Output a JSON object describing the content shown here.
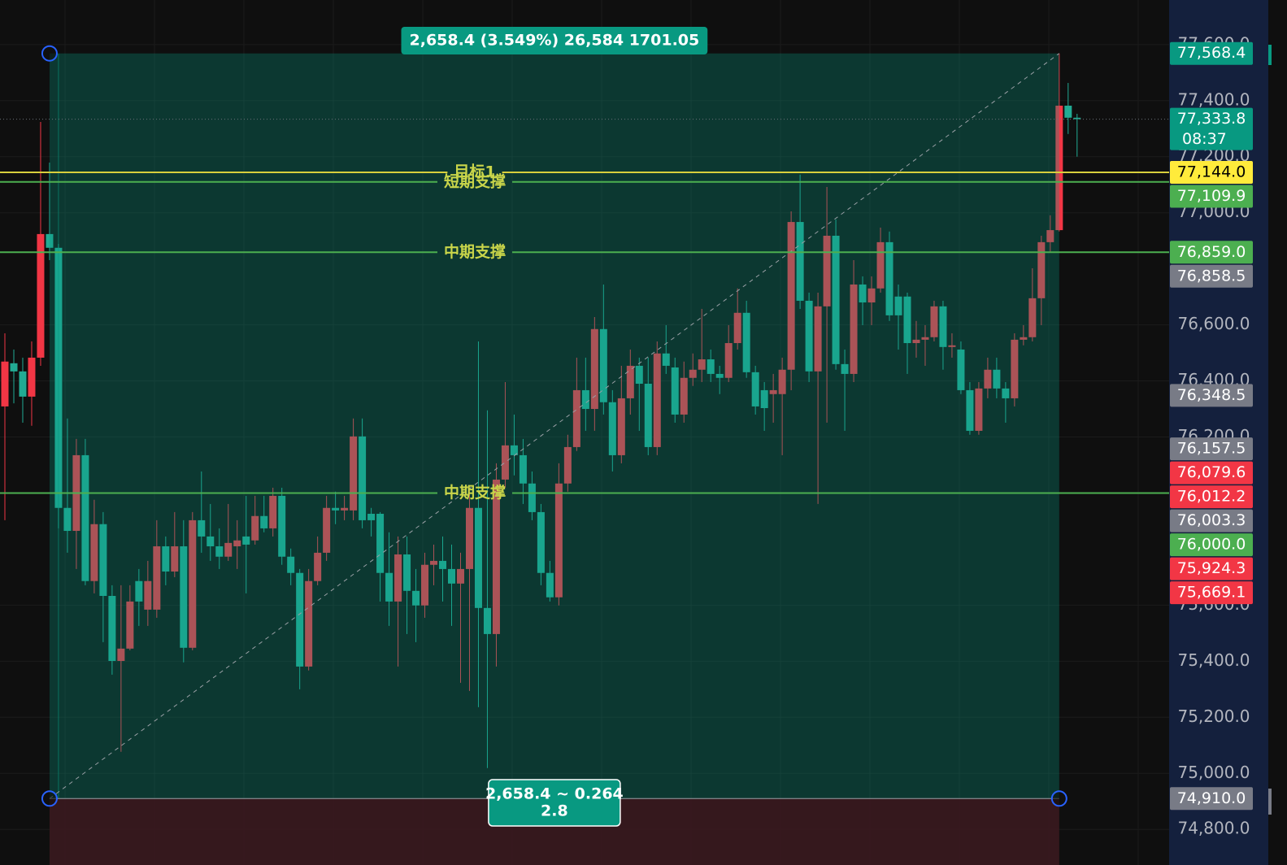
{
  "chart_data": {
    "type": "candlestick",
    "up_color": "#f23645",
    "down_color": "#22ab94",
    "open": [
      76309,
      76463,
      76434,
      76344,
      76483,
      76924,
      76875,
      75947,
      75865,
      76135,
      75686,
      75889,
      75633,
      75401,
      75445,
      75686,
      75584,
      75584,
      75810,
      75720,
      75810,
      75448,
      75903,
      75845,
      75810,
      75773,
      75810,
      75845,
      75831,
      75918,
      75874,
      75990,
      75773,
      75715,
      75381,
      75686,
      75787,
      75947,
      75938,
      75938,
      76202,
      75926,
      75926,
      75715,
      75613,
      75781,
      75651,
      75599,
      75744,
      75758,
      75729,
      75677,
      75729,
      75947,
      75590,
      75497,
      76048,
      76170,
      76135,
      76034,
      75932,
      75715,
      75628,
      76034,
      76164,
      76367,
      76300,
      76585,
      76324,
      76135,
      76338,
      76454,
      76390,
      76164,
      76498,
      76448,
      76280,
      76411,
      76440,
      76477,
      76425,
      76411,
      76535,
      76643,
      76431,
      76367,
      76353,
      76353,
      76440,
      76967,
      76686,
      76434,
      76666,
      76918,
      76460,
      76425,
      76744,
      76680,
      76730,
      76895,
      76701,
      76701,
      76535,
      76547,
      76556,
      76666,
      76521,
      76512,
      76367,
      76222,
      76373,
      76440,
      76373,
      76338,
      76547,
      76556,
      76695,
      76895,
      76938,
      77382,
      77339
    ],
    "high": [
      76570,
      76512,
      76483,
      76541,
      77324,
      77179,
      76889,
      76266,
      76193,
      76193,
      75976,
      75932,
      75671,
      75671,
      75671,
      75729,
      75758,
      75903,
      75845,
      75932,
      75903,
      75932,
      76077,
      75961,
      75874,
      75961,
      75903,
      75990,
      75990,
      75990,
      76019,
      76019,
      75802,
      75729,
      75729,
      75845,
      75990,
      76005,
      75990,
      76266,
      76266,
      75947,
      75932,
      75860,
      75845,
      75845,
      75729,
      75787,
      75816,
      75845,
      75816,
      75787,
      76019,
      76541,
      76295,
      76106,
      76396,
      76280,
      76193,
      76077,
      75961,
      75758,
      76106,
      76208,
      76483,
      76483,
      76628,
      76744,
      76367,
      76454,
      76512,
      76483,
      76483,
      76541,
      76599,
      76483,
      76469,
      76498,
      76657,
      76512,
      76454,
      76599,
      76730,
      76686,
      76454,
      76396,
      76425,
      76483,
      77005,
      77136,
      76715,
      76715,
      77092,
      76976,
      76512,
      76831,
      76773,
      76773,
      76947,
      76933,
      76744,
      76715,
      76614,
      76599,
      76686,
      76686,
      76570,
      76541,
      76396,
      76396,
      76483,
      76483,
      76396,
      76570,
      76599,
      76802,
      76918,
      76991,
      77568.4,
      77463,
      77353
    ],
    "low": [
      75903,
      76320,
      76251,
      76240,
      76454,
      76831,
      75874,
      75787,
      75729,
      75671,
      75642,
      75468,
      75352,
      75077,
      75439,
      75526,
      75526,
      75555,
      75671,
      75700,
      75396,
      75439,
      75787,
      75758,
      75729,
      75758,
      75729,
      75642,
      75816,
      75860,
      75845,
      75744,
      75671,
      75300,
      75367,
      75671,
      75758,
      75889,
      75903,
      75903,
      75874,
      75845,
      75613,
      75526,
      75381,
      75497,
      75468,
      75555,
      75671,
      75613,
      75526,
      75323,
      75294,
      75236,
      75019,
      75381,
      76019,
      76063,
      75961,
      75903,
      75671,
      75613,
      75599,
      76005,
      76150,
      76222,
      76222,
      76280,
      76077,
      76106,
      76280,
      76222,
      76135,
      76135,
      76425,
      76251,
      76251,
      76382,
      76396,
      76396,
      76353,
      76396,
      76512,
      76411,
      76280,
      76222,
      76251,
      76135,
      76367,
      76657,
      76396,
      75961,
      76251,
      76440,
      76222,
      76396,
      76599,
      76599,
      76715,
      76614,
      76512,
      76425,
      76483,
      76454,
      76541,
      76440,
      76483,
      76353,
      76208,
      76208,
      76338,
      76338,
      76251,
      76309,
      76527,
      76541,
      76599,
      76860,
      76933,
      77281,
      77200
    ],
    "close": [
      76469,
      76434,
      76344,
      76483,
      76924,
      76875,
      75947,
      75865,
      76135,
      75686,
      75889,
      75633,
      75401,
      75445,
      75613,
      75613,
      75686,
      75810,
      75720,
      75810,
      75448,
      75903,
      75845,
      75810,
      75773,
      75822,
      75831,
      75816,
      75918,
      75874,
      75990,
      75773,
      75715,
      75381,
      75686,
      75787,
      75947,
      75938,
      75947,
      76202,
      75903,
      75903,
      75715,
      75613,
      75781,
      75651,
      75599,
      75744,
      75758,
      75729,
      75677,
      75729,
      75947,
      75590,
      75497,
      76048,
      76170,
      76135,
      76034,
      75932,
      75715,
      75628,
      76034,
      76164,
      76367,
      76300,
      76585,
      76324,
      76135,
      76338,
      76454,
      76390,
      76164,
      76498,
      76454,
      76280,
      76411,
      76440,
      76477,
      76425,
      76411,
      76535,
      76643,
      76431,
      76309,
      76303,
      76367,
      76440,
      76967,
      76686,
      76434,
      76666,
      76918,
      76460,
      76425,
      76744,
      76680,
      76730,
      76895,
      76634,
      76634,
      76535,
      76547,
      76556,
      76666,
      76521,
      76527,
      76367,
      76222,
      76373,
      76440,
      76373,
      76338,
      76547,
      76556,
      76695,
      76895,
      76938,
      77382,
      77339,
      77333.8
    ],
    "ylim": [
      74673,
      77759
    ],
    "yticks": [
      {
        "value": 74800,
        "label": "74,800.0"
      },
      {
        "value": 75000,
        "label": "75,000.0"
      },
      {
        "value": 75200,
        "label": "75,200.0"
      },
      {
        "value": 75400,
        "label": "75,400.0"
      },
      {
        "value": 75600,
        "label": "75,600.0"
      },
      {
        "value": 76200,
        "label": "76,200.0"
      },
      {
        "value": 76400,
        "label": "76,400.0"
      },
      {
        "value": 76600,
        "label": "76,600.0"
      },
      {
        "value": 77000,
        "label": "77,000.0"
      },
      {
        "value": 77200,
        "label": "77,200.0"
      },
      {
        "value": 77400,
        "label": "77,400.0"
      },
      {
        "value": 77600,
        "label": "77,600.0"
      }
    ],
    "grid": true,
    "levels": [
      {
        "value": 77144.0,
        "label": "目标1",
        "color": "#d8cf3c"
      },
      {
        "value": 77109.9,
        "label": "短期支撑",
        "color": "#4caf50"
      },
      {
        "value": 76859.0,
        "label": "中期支撑",
        "color": "#4caf50"
      },
      {
        "value": 76000.0,
        "label": "中期支撑",
        "color": "#4caf50"
      }
    ],
    "price_tags": [
      {
        "value": 77568.4,
        "label": "77,568.4",
        "color": "#089981"
      },
      {
        "value": 77333.8,
        "label": "77,333.8",
        "sublabel": "08:37",
        "color": "#089981"
      },
      {
        "value": 77144.0,
        "label": "77,144.0",
        "color": "#ffeb3b",
        "text_color": "#000000"
      },
      {
        "value": 77109.9,
        "label": "77,109.9",
        "color": "#4caf50"
      },
      {
        "value": 76859.0,
        "label": "76,859.0",
        "color": "#4caf50"
      },
      {
        "value": 76858.5,
        "label": "76,858.5",
        "color": "#787b86"
      },
      {
        "value": 76348.5,
        "label": "76,348.5",
        "color": "#787b86"
      },
      {
        "value": 76157.5,
        "label": "76,157.5",
        "color": "#787b86"
      },
      {
        "value": 76079.6,
        "label": "76,079.6",
        "color": "#f23645"
      },
      {
        "value": 76012.2,
        "label": "76,012.2",
        "color": "#f23645"
      },
      {
        "value": 76003.3,
        "label": "76,003.3",
        "color": "#787b86"
      },
      {
        "value": 76000.0,
        "label": "76,000.0",
        "color": "#4caf50"
      },
      {
        "value": 75924.3,
        "label": "75,924.3",
        "color": "#f23645"
      },
      {
        "value": 75669.1,
        "label": "75,669.1",
        "color": "#f23645"
      },
      {
        "value": 74910.0,
        "label": "74,910.0",
        "color": "#787b86"
      }
    ],
    "measure": {
      "from": 74910.0,
      "to": 77568.4,
      "label": "2,658.4 (3.549%) 26,584 1701.05",
      "footer": [
        "2,658.4 ~ 0.264",
        "2.8"
      ],
      "color": "#089981",
      "loss_color": "#3a1a1f"
    }
  }
}
